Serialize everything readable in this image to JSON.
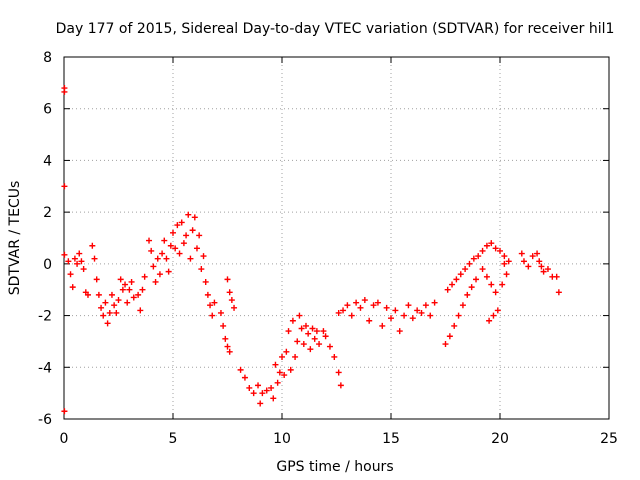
{
  "chart_data": {
    "type": "scatter",
    "title": "Day 177 of 2015, Sidereal Day-to-day VTEC variation (SDTVAR) for receiver hil1",
    "xlabel": "GPS time / hours",
    "ylabel": "SDTVAR / TECUs",
    "xlim": [
      0,
      25
    ],
    "ylim": [
      -6,
      8
    ],
    "xticks": [
      0,
      5,
      10,
      15,
      20,
      25
    ],
    "yticks": [
      -6,
      -4,
      -2,
      0,
      2,
      4,
      6,
      8
    ],
    "grid": true,
    "marker": "plus",
    "color": "#ff0000",
    "series": [
      {
        "values": [
          [
            0.02,
            6.8
          ],
          [
            0.02,
            6.65
          ],
          [
            0.02,
            3.0
          ],
          [
            0.02,
            0.35
          ],
          [
            0.02,
            -5.7
          ],
          [
            0.2,
            0.1
          ],
          [
            0.3,
            -0.4
          ],
          [
            0.4,
            -0.9
          ],
          [
            0.5,
            0.2
          ],
          [
            0.6,
            0.0
          ],
          [
            0.7,
            0.4
          ],
          [
            0.8,
            0.1
          ],
          [
            0.9,
            -0.2
          ],
          [
            1.0,
            -1.1
          ],
          [
            1.1,
            -1.2
          ],
          [
            1.3,
            0.7
          ],
          [
            1.4,
            0.2
          ],
          [
            1.5,
            -0.6
          ],
          [
            1.6,
            -1.2
          ],
          [
            1.7,
            -1.7
          ],
          [
            1.8,
            -2.0
          ],
          [
            1.9,
            -1.5
          ],
          [
            2.0,
            -2.3
          ],
          [
            2.1,
            -1.9
          ],
          [
            2.2,
            -1.2
          ],
          [
            2.3,
            -1.6
          ],
          [
            2.4,
            -1.9
          ],
          [
            2.5,
            -1.4
          ],
          [
            2.6,
            -0.6
          ],
          [
            2.7,
            -1.0
          ],
          [
            2.8,
            -0.8
          ],
          [
            2.9,
            -1.5
          ],
          [
            3.0,
            -1.0
          ],
          [
            3.1,
            -0.7
          ],
          [
            3.2,
            -1.3
          ],
          [
            3.4,
            -1.2
          ],
          [
            3.5,
            -1.8
          ],
          [
            3.6,
            -1.0
          ],
          [
            3.7,
            -0.5
          ],
          [
            3.9,
            0.9
          ],
          [
            4.0,
            0.5
          ],
          [
            4.1,
            -0.1
          ],
          [
            4.2,
            -0.7
          ],
          [
            4.3,
            0.2
          ],
          [
            4.4,
            -0.4
          ],
          [
            4.5,
            0.4
          ],
          [
            4.6,
            0.9
          ],
          [
            4.7,
            0.2
          ],
          [
            4.8,
            -0.3
          ],
          [
            4.9,
            0.7
          ],
          [
            5.0,
            1.2
          ],
          [
            5.1,
            0.6
          ],
          [
            5.2,
            1.5
          ],
          [
            5.3,
            0.4
          ],
          [
            5.4,
            1.6
          ],
          [
            5.5,
            0.8
          ],
          [
            5.6,
            1.1
          ],
          [
            5.7,
            1.9
          ],
          [
            5.8,
            0.2
          ],
          [
            5.9,
            1.3
          ],
          [
            6.0,
            1.8
          ],
          [
            6.1,
            0.6
          ],
          [
            6.2,
            1.1
          ],
          [
            6.3,
            -0.2
          ],
          [
            6.4,
            0.3
          ],
          [
            6.5,
            -0.7
          ],
          [
            6.6,
            -1.2
          ],
          [
            6.7,
            -1.6
          ],
          [
            6.8,
            -2.0
          ],
          [
            6.9,
            -1.5
          ],
          [
            7.2,
            -1.9
          ],
          [
            7.3,
            -2.4
          ],
          [
            7.4,
            -2.9
          ],
          [
            7.5,
            -3.2
          ],
          [
            7.6,
            -3.4
          ],
          [
            7.5,
            -0.6
          ],
          [
            7.6,
            -1.1
          ],
          [
            7.7,
            -1.4
          ],
          [
            7.8,
            -1.7
          ],
          [
            8.1,
            -4.1
          ],
          [
            8.3,
            -4.4
          ],
          [
            8.5,
            -4.8
          ],
          [
            8.7,
            -5.0
          ],
          [
            8.9,
            -4.7
          ],
          [
            9.0,
            -5.4
          ],
          [
            9.1,
            -5.0
          ],
          [
            9.3,
            -4.9
          ],
          [
            9.5,
            -4.8
          ],
          [
            9.6,
            -5.2
          ],
          [
            9.7,
            -3.9
          ],
          [
            9.8,
            -4.6
          ],
          [
            9.9,
            -4.2
          ],
          [
            10.0,
            -3.6
          ],
          [
            10.1,
            -4.3
          ],
          [
            10.2,
            -3.4
          ],
          [
            10.3,
            -2.6
          ],
          [
            10.4,
            -4.1
          ],
          [
            10.5,
            -2.2
          ],
          [
            10.6,
            -3.6
          ],
          [
            10.7,
            -3.0
          ],
          [
            10.8,
            -2.0
          ],
          [
            10.9,
            -2.5
          ],
          [
            11.0,
            -3.1
          ],
          [
            11.1,
            -2.4
          ],
          [
            11.2,
            -2.7
          ],
          [
            11.3,
            -3.3
          ],
          [
            11.4,
            -2.5
          ],
          [
            11.5,
            -2.9
          ],
          [
            11.6,
            -2.6
          ],
          [
            11.7,
            -3.1
          ],
          [
            11.9,
            -2.6
          ],
          [
            12.0,
            -2.8
          ],
          [
            12.2,
            -3.2
          ],
          [
            12.4,
            -3.6
          ],
          [
            12.6,
            -4.2
          ],
          [
            12.7,
            -4.7
          ],
          [
            12.6,
            -1.9
          ],
          [
            12.8,
            -1.8
          ],
          [
            13.0,
            -1.6
          ],
          [
            13.2,
            -2.0
          ],
          [
            13.4,
            -1.5
          ],
          [
            13.6,
            -1.7
          ],
          [
            13.8,
            -1.4
          ],
          [
            14.0,
            -2.2
          ],
          [
            14.2,
            -1.6
          ],
          [
            14.4,
            -1.5
          ],
          [
            14.6,
            -2.4
          ],
          [
            14.8,
            -1.7
          ],
          [
            15.0,
            -2.1
          ],
          [
            15.2,
            -1.8
          ],
          [
            15.4,
            -2.6
          ],
          [
            15.6,
            -2.0
          ],
          [
            15.8,
            -1.6
          ],
          [
            16.0,
            -2.1
          ],
          [
            16.2,
            -1.8
          ],
          [
            16.4,
            -1.9
          ],
          [
            16.6,
            -1.6
          ],
          [
            16.8,
            -2.0
          ],
          [
            17.0,
            -1.5
          ],
          [
            17.5,
            -3.1
          ],
          [
            17.7,
            -2.8
          ],
          [
            17.9,
            -2.4
          ],
          [
            18.1,
            -2.0
          ],
          [
            18.3,
            -1.6
          ],
          [
            18.5,
            -1.2
          ],
          [
            18.7,
            -0.9
          ],
          [
            18.9,
            -0.6
          ],
          [
            17.6,
            -1.0
          ],
          [
            17.8,
            -0.8
          ],
          [
            18.0,
            -0.6
          ],
          [
            18.2,
            -0.4
          ],
          [
            18.4,
            -0.2
          ],
          [
            18.6,
            0.0
          ],
          [
            18.8,
            0.2
          ],
          [
            19.0,
            0.3
          ],
          [
            19.2,
            0.5
          ],
          [
            19.4,
            0.7
          ],
          [
            19.6,
            0.8
          ],
          [
            19.8,
            0.6
          ],
          [
            20.0,
            0.5
          ],
          [
            20.2,
            0.3
          ],
          [
            20.4,
            0.1
          ],
          [
            19.2,
            -0.2
          ],
          [
            19.4,
            -0.5
          ],
          [
            19.6,
            -0.8
          ],
          [
            19.8,
            -1.1
          ],
          [
            19.5,
            -2.2
          ],
          [
            19.7,
            -2.0
          ],
          [
            19.9,
            -1.8
          ],
          [
            20.2,
            0.0
          ],
          [
            20.3,
            -0.4
          ],
          [
            20.1,
            -0.8
          ],
          [
            21.0,
            0.4
          ],
          [
            21.1,
            0.1
          ],
          [
            21.3,
            -0.1
          ],
          [
            21.5,
            0.3
          ],
          [
            21.7,
            0.4
          ],
          [
            21.8,
            0.1
          ],
          [
            21.9,
            -0.1
          ],
          [
            22.0,
            -0.3
          ],
          [
            22.2,
            -0.2
          ],
          [
            22.4,
            -0.5
          ],
          [
            22.6,
            -0.5
          ],
          [
            22.7,
            -1.1
          ]
        ]
      }
    ]
  }
}
